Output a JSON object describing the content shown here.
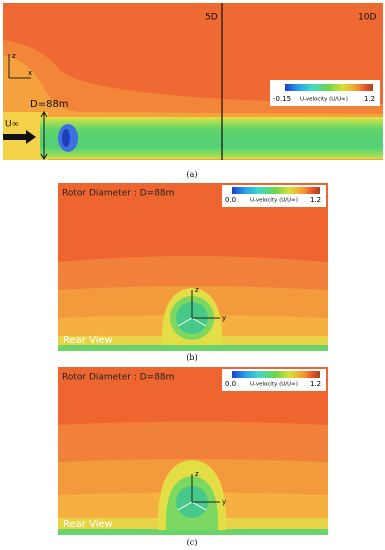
{
  "panel_a": {
    "label_5d": "5D",
    "label_10d": "10D",
    "axis_z": "z",
    "axis_x": "x",
    "diameter": "D=88m",
    "inflow": "U∞",
    "colorbar": {
      "min": "-0.15",
      "title": "U-velocity (U/U∞)",
      "max": "1.2"
    },
    "caption": "(a)"
  },
  "panel_b": {
    "rotor_diameter": "Rotor Diameter : D=88m",
    "colorbar": {
      "min": "0.0",
      "title": "U-velocity (U/U∞)",
      "max": "1.2"
    },
    "axis_z": "z",
    "axis_y": "y",
    "view": "Rear View",
    "caption": "(b)"
  },
  "panel_c": {
    "rotor_diameter": "Rotor Diameter : D=88m",
    "colorbar": {
      "min": "0.0",
      "title": "U-velocity (U/U∞)",
      "max": "1.2"
    },
    "axis_z": "z",
    "axis_y": "y",
    "view": "Rear View",
    "caption": "(c)"
  }
}
